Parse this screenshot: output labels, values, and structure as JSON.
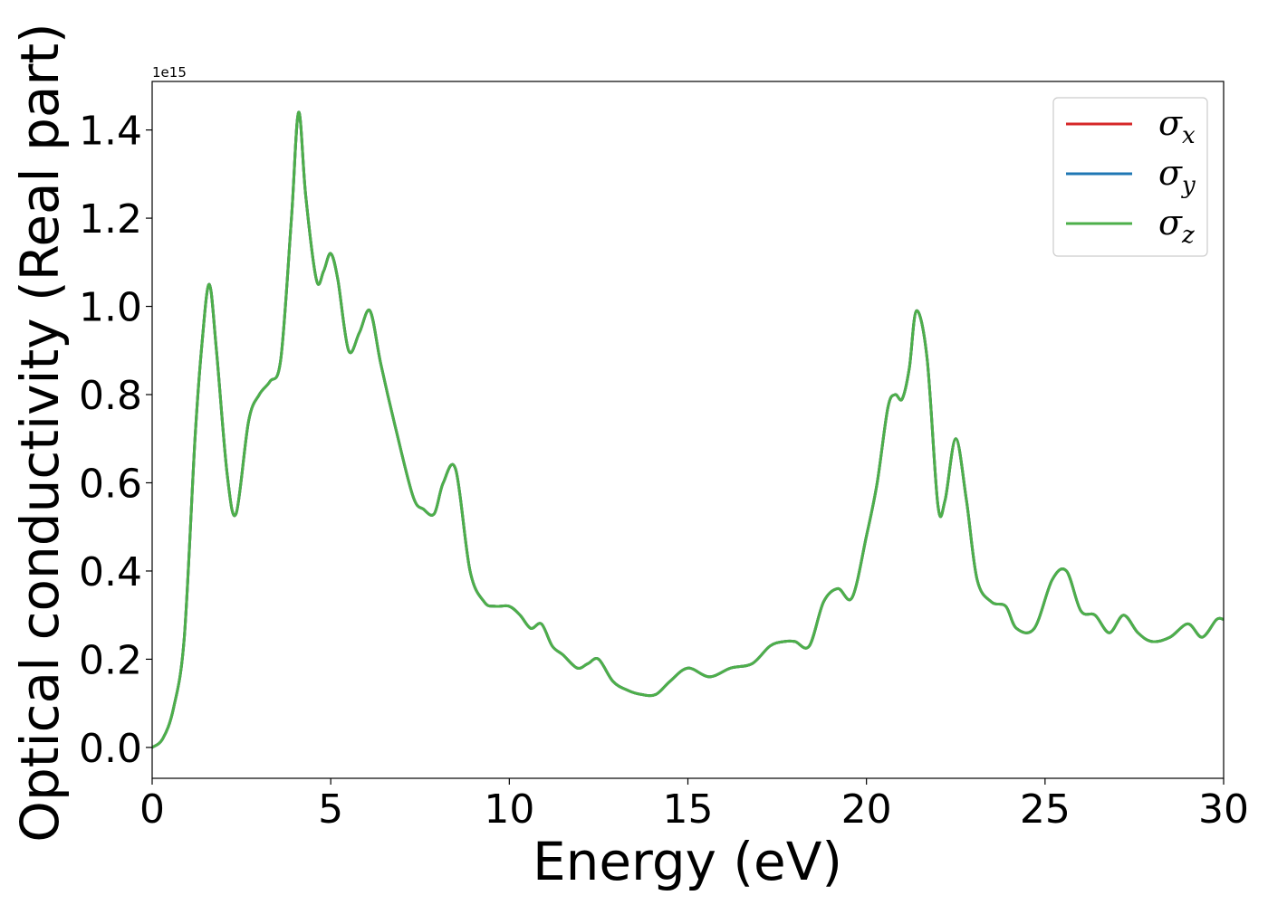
{
  "chart_data": {
    "type": "line",
    "title": "",
    "xlabel": "Energy (eV)",
    "ylabel": "Optical conductivity (Real part)",
    "y_offset_text": "1e15",
    "y_scale_factor": 1000000000000000.0,
    "xlim": [
      0,
      30
    ],
    "ylim": [
      -0.07,
      1.51
    ],
    "xticks": [
      0,
      5,
      10,
      15,
      20,
      25,
      30
    ],
    "xtick_labels": [
      "0",
      "5",
      "10",
      "15",
      "20",
      "25",
      "30"
    ],
    "yticks": [
      0.0,
      0.2,
      0.4,
      0.6,
      0.8,
      1.0,
      1.2,
      1.4
    ],
    "ytick_labels": [
      "0.0",
      "0.2",
      "0.4",
      "0.6",
      "0.8",
      "1.0",
      "1.2",
      "1.4"
    ],
    "grid": false,
    "legend_position": "top-right",
    "x": [
      0,
      0.3,
      0.6,
      0.9,
      1.2,
      1.4,
      1.6,
      1.8,
      2.1,
      2.35,
      2.7,
      3.0,
      3.3,
      3.6,
      3.9,
      4.1,
      4.3,
      4.6,
      4.8,
      5.0,
      5.2,
      5.5,
      5.8,
      6.1,
      6.4,
      6.8,
      7.3,
      7.6,
      7.9,
      8.15,
      8.5,
      8.9,
      9.3,
      9.6,
      10.0,
      10.3,
      10.6,
      10.9,
      11.2,
      11.5,
      11.9,
      12.2,
      12.5,
      12.9,
      13.3,
      13.7,
      14.1,
      14.5,
      15.0,
      15.6,
      16.2,
      16.8,
      17.3,
      17.7,
      18.0,
      18.4,
      18.8,
      19.2,
      19.6,
      20.0,
      20.3,
      20.6,
      20.8,
      21.0,
      21.2,
      21.4,
      21.7,
      22.0,
      22.2,
      22.5,
      22.8,
      23.1,
      23.5,
      23.9,
      24.2,
      24.7,
      25.2,
      25.6,
      26.0,
      26.4,
      26.8,
      27.2,
      27.6,
      28.0,
      28.5,
      29.0,
      29.4,
      29.8,
      30.0
    ],
    "series": [
      {
        "name": "σx",
        "color": "#d62728",
        "values": [
          0.0,
          0.02,
          0.09,
          0.25,
          0.7,
          0.92,
          1.05,
          0.9,
          0.62,
          0.53,
          0.74,
          0.8,
          0.83,
          0.88,
          1.2,
          1.44,
          1.25,
          1.06,
          1.08,
          1.12,
          1.06,
          0.9,
          0.94,
          0.99,
          0.87,
          0.73,
          0.57,
          0.54,
          0.53,
          0.6,
          0.63,
          0.4,
          0.33,
          0.32,
          0.32,
          0.3,
          0.27,
          0.28,
          0.23,
          0.21,
          0.18,
          0.19,
          0.2,
          0.15,
          0.13,
          0.12,
          0.12,
          0.15,
          0.18,
          0.16,
          0.18,
          0.19,
          0.23,
          0.24,
          0.24,
          0.23,
          0.33,
          0.36,
          0.34,
          0.48,
          0.6,
          0.77,
          0.8,
          0.79,
          0.86,
          0.99,
          0.88,
          0.55,
          0.56,
          0.7,
          0.56,
          0.38,
          0.33,
          0.32,
          0.27,
          0.27,
          0.38,
          0.4,
          0.31,
          0.3,
          0.26,
          0.3,
          0.26,
          0.24,
          0.25,
          0.28,
          0.25,
          0.29,
          0.29
        ]
      },
      {
        "name": "σy",
        "color": "#1f77b4",
        "values": [
          0.0,
          0.02,
          0.09,
          0.25,
          0.7,
          0.92,
          1.05,
          0.9,
          0.62,
          0.53,
          0.74,
          0.8,
          0.83,
          0.88,
          1.2,
          1.44,
          1.25,
          1.06,
          1.08,
          1.12,
          1.06,
          0.9,
          0.94,
          0.99,
          0.87,
          0.73,
          0.57,
          0.54,
          0.53,
          0.6,
          0.63,
          0.4,
          0.33,
          0.32,
          0.32,
          0.3,
          0.27,
          0.28,
          0.23,
          0.21,
          0.18,
          0.19,
          0.2,
          0.15,
          0.13,
          0.12,
          0.12,
          0.15,
          0.18,
          0.16,
          0.18,
          0.19,
          0.23,
          0.24,
          0.24,
          0.23,
          0.33,
          0.36,
          0.34,
          0.48,
          0.6,
          0.77,
          0.8,
          0.79,
          0.86,
          0.99,
          0.88,
          0.55,
          0.56,
          0.7,
          0.56,
          0.38,
          0.33,
          0.32,
          0.27,
          0.27,
          0.38,
          0.4,
          0.31,
          0.3,
          0.26,
          0.3,
          0.26,
          0.24,
          0.25,
          0.28,
          0.25,
          0.29,
          0.29
        ]
      },
      {
        "name": "σz",
        "color": "#4daf4a",
        "values": [
          0.0,
          0.02,
          0.09,
          0.25,
          0.7,
          0.92,
          1.05,
          0.9,
          0.62,
          0.53,
          0.74,
          0.8,
          0.83,
          0.88,
          1.2,
          1.44,
          1.25,
          1.06,
          1.08,
          1.12,
          1.06,
          0.9,
          0.94,
          0.99,
          0.87,
          0.73,
          0.57,
          0.54,
          0.53,
          0.6,
          0.63,
          0.4,
          0.33,
          0.32,
          0.32,
          0.3,
          0.27,
          0.28,
          0.23,
          0.21,
          0.18,
          0.19,
          0.2,
          0.15,
          0.13,
          0.12,
          0.12,
          0.15,
          0.18,
          0.16,
          0.18,
          0.19,
          0.23,
          0.24,
          0.24,
          0.23,
          0.33,
          0.36,
          0.34,
          0.48,
          0.6,
          0.77,
          0.8,
          0.79,
          0.86,
          0.99,
          0.88,
          0.55,
          0.56,
          0.7,
          0.56,
          0.38,
          0.33,
          0.32,
          0.27,
          0.27,
          0.38,
          0.4,
          0.31,
          0.3,
          0.26,
          0.3,
          0.26,
          0.24,
          0.25,
          0.28,
          0.25,
          0.29,
          0.29
        ]
      }
    ],
    "legend": [
      {
        "symbol": "σ",
        "sub": "x",
        "color": "#d62728"
      },
      {
        "symbol": "σ",
        "sub": "y",
        "color": "#1f77b4"
      },
      {
        "symbol": "σ",
        "sub": "z",
        "color": "#4daf4a"
      }
    ]
  }
}
